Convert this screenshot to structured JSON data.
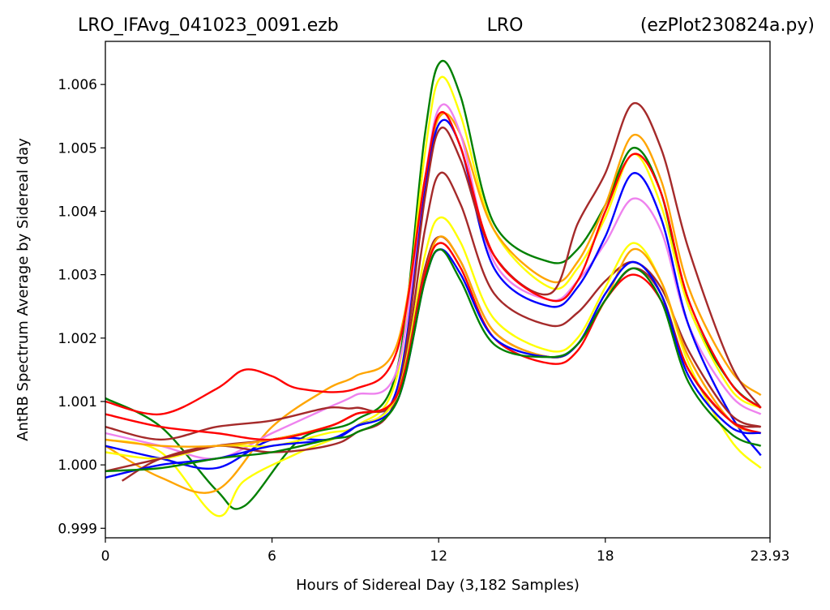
{
  "chart_data": {
    "type": "line",
    "title_left": "LRO_IFAvg_041023_0091.ezb",
    "title_center": "LRO",
    "title_right": "(ezPlot230824a.py)",
    "xlabel": "Hours of Sidereal Day  (3,182 Samples)",
    "ylabel": "AntRB Spectrum Average by Sidereal day",
    "xlim": [
      0,
      23.93
    ],
    "ylim": [
      0.99885,
      1.00668
    ],
    "xticks": [
      0,
      6,
      12,
      18,
      23.93
    ],
    "xtick_labels": [
      "0",
      "6",
      "12",
      "18",
      "23.93"
    ],
    "yticks": [
      0.999,
      1.0,
      1.001,
      1.002,
      1.003,
      1.004,
      1.005,
      1.006
    ],
    "ytick_labels": [
      "0.999",
      "1.000",
      "1.001",
      "1.002",
      "1.003",
      "1.004",
      "1.005",
      "1.006"
    ],
    "grid": false,
    "legend": false,
    "series": [
      {
        "color": "#008000",
        "x": [
          0,
          2,
          4,
          5,
          7,
          9,
          10.5,
          11.5,
          12.05,
          12.8,
          14,
          16,
          17,
          18,
          19,
          20,
          21,
          22.5,
          23.6
        ],
        "values": [
          1.00105,
          1.0006,
          0.9996,
          0.99935,
          1.0004,
          1.0007,
          1.0015,
          1.0052,
          1.00635,
          1.0058,
          1.0038,
          1.0032,
          1.0034,
          1.0041,
          1.005,
          1.0043,
          1.0025,
          1.0013,
          1.0009
        ]
      },
      {
        "color": "#ffff00",
        "x": [
          0,
          2,
          4,
          5,
          7,
          9,
          10.5,
          11.5,
          12.05,
          12.8,
          14,
          16,
          17,
          18,
          19,
          20,
          21,
          22.5,
          23.6
        ],
        "values": [
          1.0004,
          1.0002,
          0.9992,
          0.99975,
          1.0002,
          1.0006,
          1.0014,
          1.0049,
          1.0061,
          1.0055,
          1.0037,
          1.0028,
          1.0031,
          1.0039,
          1.0049,
          1.0041,
          1.0025,
          1.0012,
          1.0009
        ]
      },
      {
        "color": "#ffa500",
        "x": [
          0,
          2,
          4,
          6,
          8,
          9,
          10.5,
          11.5,
          12.05,
          12.8,
          14,
          16,
          17,
          18,
          19,
          20,
          21,
          22.5,
          23.6
        ],
        "values": [
          1.0003,
          0.9998,
          0.9996,
          1.0006,
          1.0012,
          1.0014,
          1.0019,
          1.0045,
          1.0055,
          1.0052,
          1.0037,
          1.0029,
          1.0032,
          1.0041,
          1.0052,
          1.0045,
          1.0028,
          1.0015,
          1.0011
        ]
      },
      {
        "color": "#ee82ee",
        "x": [
          0,
          2,
          4,
          6,
          8,
          9,
          10.5,
          11.5,
          12.05,
          12.8,
          14,
          16,
          17,
          18,
          19,
          20,
          21,
          22.5,
          23.6
        ],
        "values": [
          1.0005,
          1.0003,
          1.0001,
          1.0005,
          1.0009,
          1.0011,
          1.0015,
          1.0045,
          1.00565,
          1.0052,
          1.0032,
          1.0026,
          1.0029,
          1.0035,
          1.0042,
          1.0037,
          1.0022,
          1.0011,
          1.0008
        ]
      },
      {
        "color": "#0000ff",
        "x": [
          0,
          2,
          4,
          6,
          8,
          9,
          10.5,
          11.5,
          12.05,
          12.8,
          14,
          16,
          17,
          18,
          19,
          20,
          21,
          22.5,
          23.6
        ],
        "values": [
          1.0003,
          1.0001,
          0.99995,
          1.0004,
          1.0004,
          1.0006,
          1.0012,
          1.0043,
          1.0054,
          1.005,
          1.0031,
          1.0025,
          1.0028,
          1.0036,
          1.0046,
          1.0039,
          1.0022,
          1.0008,
          1.00015
        ]
      },
      {
        "color": "#a52a2a",
        "x": [
          0.6,
          2,
          4,
          6,
          8,
          9,
          10.5,
          11.5,
          12.05,
          12.8,
          14,
          16,
          17,
          18,
          19,
          20,
          21,
          22.5,
          23.6
        ],
        "values": [
          0.99975,
          1.0001,
          1.0003,
          1.0002,
          1.0003,
          1.0005,
          1.0011,
          1.0042,
          1.0053,
          1.0048,
          1.0033,
          1.0027,
          1.0038,
          1.0046,
          1.0057,
          1.005,
          1.0034,
          1.0016,
          1.0009
        ]
      },
      {
        "color": "#ff0000",
        "x": [
          0,
          2,
          4,
          5,
          6,
          7,
          9,
          10.5,
          11.5,
          12.05,
          12.8,
          14,
          16,
          17,
          18,
          19,
          20,
          21,
          22.5,
          23.6
        ],
        "values": [
          1.001,
          1.0008,
          1.0012,
          1.0015,
          1.0014,
          1.0012,
          1.0012,
          1.0018,
          1.0045,
          1.00555,
          1.005,
          1.0033,
          1.0026,
          1.0029,
          1.004,
          1.0049,
          1.0043,
          1.0026,
          1.0013,
          1.0009
        ]
      },
      {
        "color": "#a52a2a",
        "x": [
          0,
          2,
          4,
          6,
          8,
          9,
          10.5,
          11.5,
          12.05,
          12.8,
          14,
          16,
          17,
          18,
          19,
          20,
          21,
          22.5,
          23.6
        ],
        "values": [
          1.0006,
          1.0004,
          1.0006,
          1.0007,
          1.0009,
          1.0009,
          1.0011,
          1.0037,
          1.0046,
          1.0041,
          1.0027,
          1.0022,
          1.0024,
          1.0029,
          1.0032,
          1.0028,
          1.0018,
          1.0008,
          1.0006
        ]
      },
      {
        "color": "#ffff00",
        "x": [
          0,
          2,
          4,
          6,
          8,
          9,
          10.5,
          11.5,
          12.05,
          12.8,
          14,
          16,
          17,
          18,
          19,
          20,
          21,
          22.5,
          23.6
        ],
        "values": [
          1.0002,
          1.0001,
          1.0003,
          1.0003,
          1.0005,
          1.0006,
          1.0011,
          1.0033,
          1.0039,
          1.0035,
          1.0023,
          1.0018,
          1.002,
          1.0028,
          1.0035,
          1.0029,
          1.0016,
          1.0004,
          0.99995
        ]
      },
      {
        "color": "#a52a2a",
        "x": [
          0,
          2,
          4,
          6,
          8,
          9,
          10.5,
          11.5,
          12.05,
          12.8,
          14,
          16,
          17,
          18,
          19,
          20,
          21,
          22.5,
          23.6
        ],
        "values": [
          0.9999,
          1.0001,
          1.0003,
          1.0004,
          1.0006,
          1.0008,
          1.0011,
          1.0031,
          1.0036,
          1.0032,
          1.0021,
          1.0017,
          1.0019,
          1.0026,
          1.0031,
          1.0027,
          1.0015,
          1.0007,
          1.0006
        ]
      },
      {
        "color": "#ffa500",
        "x": [
          0,
          2,
          4,
          6,
          8,
          9,
          10.5,
          11.5,
          12.05,
          12.8,
          14,
          16,
          17,
          18,
          19,
          20,
          21,
          22.5,
          23.6
        ],
        "values": [
          1.0004,
          1.0003,
          1.0003,
          1.0004,
          1.0006,
          1.0008,
          1.0011,
          1.003,
          1.0036,
          1.0032,
          1.0021,
          1.0017,
          1.0019,
          1.0026,
          1.0034,
          1.0029,
          1.0017,
          1.0007,
          1.0005
        ]
      },
      {
        "color": "#ff0000",
        "x": [
          0,
          2,
          4,
          6,
          8,
          9,
          10.5,
          11.5,
          12.05,
          12.8,
          14,
          16,
          17,
          18,
          19,
          20,
          21,
          22.5,
          23.6
        ],
        "values": [
          1.0008,
          1.0006,
          1.0005,
          1.0004,
          1.0006,
          1.0008,
          1.0011,
          1.003,
          1.0035,
          1.0031,
          1.002,
          1.0016,
          1.0018,
          1.0026,
          1.003,
          1.0026,
          1.0015,
          1.0007,
          1.0005
        ]
      },
      {
        "color": "#0000ff",
        "x": [
          0,
          2,
          4,
          6,
          8,
          9,
          10.5,
          11.5,
          12.05,
          12.8,
          14,
          16,
          17,
          18,
          19,
          20,
          21,
          22.5,
          23.6
        ],
        "values": [
          0.9998,
          1.0,
          1.0001,
          1.0003,
          1.0004,
          1.0006,
          1.001,
          1.0029,
          1.0034,
          1.003,
          1.002,
          1.0017,
          1.0019,
          1.0027,
          1.0032,
          1.0027,
          1.0014,
          1.0006,
          1.0005
        ]
      },
      {
        "color": "#008000",
        "x": [
          0,
          2,
          4,
          6,
          8,
          9,
          10.5,
          11.5,
          12.05,
          12.8,
          14,
          16,
          17,
          18,
          19,
          20,
          21,
          22.5,
          23.6
        ],
        "values": [
          0.9999,
          0.99995,
          1.0001,
          1.0002,
          1.0004,
          1.0005,
          1.001,
          1.0029,
          1.0034,
          1.0029,
          1.0019,
          1.0017,
          1.0019,
          1.0026,
          1.0031,
          1.0026,
          1.0013,
          1.0005,
          1.0003
        ]
      }
    ]
  }
}
